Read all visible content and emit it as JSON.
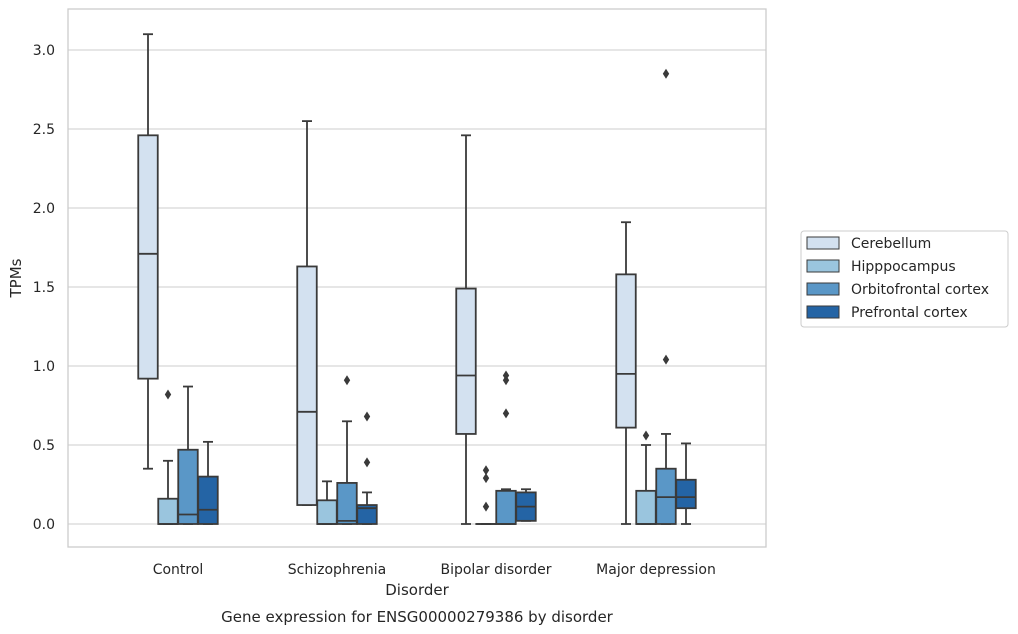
{
  "chart_data": {
    "type": "box",
    "title": "",
    "caption": "Gene expression for ENSG00000279386 by disorder",
    "xlabel": "Disorder",
    "ylabel": "TPMs",
    "ylim": [
      -0.15,
      3.25
    ],
    "yticks": [
      0.0,
      0.5,
      1.0,
      1.5,
      2.0,
      2.5,
      3.0
    ],
    "ytick_labels": [
      "0.0",
      "0.5",
      "1.0",
      "1.5",
      "2.0",
      "2.5",
      "3.0"
    ],
    "grid": "horizontal",
    "legend_position": "right",
    "categories": [
      "Control",
      "Schizophrenia",
      "Bipolar disorder",
      "Major depression"
    ],
    "series": [
      {
        "name": "Cerebellum",
        "color": "#d3e1f0",
        "boxes": [
          {
            "whislo": 0.35,
            "q1": 0.92,
            "med": 1.71,
            "q3": 2.46,
            "whishi": 3.1,
            "fliers": []
          },
          {
            "whislo": 0.12,
            "q1": 0.12,
            "med": 0.71,
            "q3": 1.63,
            "whishi": 2.55,
            "fliers": []
          },
          {
            "whislo": 0.0,
            "q1": 0.57,
            "med": 0.94,
            "q3": 1.49,
            "whishi": 2.46,
            "fliers": []
          },
          {
            "whislo": 0.0,
            "q1": 0.61,
            "med": 0.95,
            "q3": 1.58,
            "whishi": 1.91,
            "fliers": []
          }
        ]
      },
      {
        "name": "Hipppocampus",
        "color": "#9ac5de",
        "boxes": [
          {
            "whislo": 0.0,
            "q1": 0.0,
            "med": 0.0,
            "q3": 0.16,
            "whishi": 0.4,
            "fliers": [
              0.82
            ]
          },
          {
            "whislo": 0.0,
            "q1": 0.0,
            "med": 0.0,
            "q3": 0.15,
            "whishi": 0.27,
            "fliers": []
          },
          {
            "whislo": 0.0,
            "q1": 0.0,
            "med": 0.0,
            "q3": 0.0,
            "whishi": 0.0,
            "fliers": [
              0.34,
              0.29,
              0.11
            ]
          },
          {
            "whislo": 0.0,
            "q1": 0.0,
            "med": 0.0,
            "q3": 0.21,
            "whishi": 0.5,
            "fliers": [
              0.56
            ]
          }
        ]
      },
      {
        "name": "Orbitofrontal cortex",
        "color": "#5a97c7",
        "boxes": [
          {
            "whislo": 0.0,
            "q1": 0.0,
            "med": 0.06,
            "q3": 0.47,
            "whishi": 0.87,
            "fliers": []
          },
          {
            "whislo": 0.0,
            "q1": 0.0,
            "med": 0.02,
            "q3": 0.26,
            "whishi": 0.65,
            "fliers": [
              0.91
            ]
          },
          {
            "whislo": 0.0,
            "q1": 0.0,
            "med": 0.0,
            "q3": 0.21,
            "whishi": 0.22,
            "fliers": [
              0.94,
              0.91,
              0.7
            ]
          },
          {
            "whislo": 0.0,
            "q1": 0.0,
            "med": 0.17,
            "q3": 0.35,
            "whishi": 0.57,
            "fliers": [
              1.04,
              2.85
            ]
          }
        ]
      },
      {
        "name": "Prefrontal cortex",
        "color": "#2464a5",
        "boxes": [
          {
            "whislo": 0.0,
            "q1": 0.0,
            "med": 0.09,
            "q3": 0.3,
            "whishi": 0.52,
            "fliers": []
          },
          {
            "whislo": 0.0,
            "q1": 0.0,
            "med": 0.1,
            "q3": 0.12,
            "whishi": 0.2,
            "fliers": [
              0.68,
              0.39
            ]
          },
          {
            "whislo": 0.02,
            "q1": 0.02,
            "med": 0.11,
            "q3": 0.2,
            "whishi": 0.22,
            "fliers": []
          },
          {
            "whislo": 0.0,
            "q1": 0.1,
            "med": 0.17,
            "q3": 0.28,
            "whishi": 0.51,
            "fliers": []
          }
        ]
      }
    ]
  }
}
